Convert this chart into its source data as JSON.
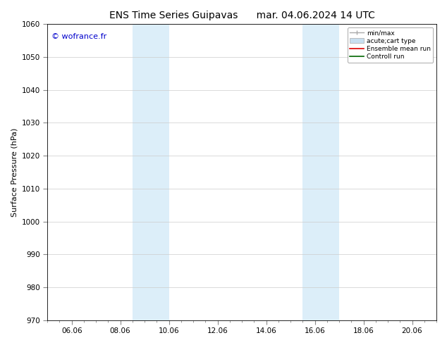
{
  "title_left": "ENS Time Series Guipavas",
  "title_right": "mar. 04.06.2024 14 UTC",
  "ylabel": "Surface Pressure (hPa)",
  "ylim": [
    970,
    1060
  ],
  "yticks": [
    970,
    980,
    990,
    1000,
    1010,
    1020,
    1030,
    1040,
    1050,
    1060
  ],
  "xtick_labels": [
    "06.06",
    "08.06",
    "10.06",
    "12.06",
    "14.06",
    "16.06",
    "18.06",
    "20.06"
  ],
  "xtick_positions": [
    2,
    4,
    6,
    8,
    10,
    12,
    14,
    16
  ],
  "xlim": [
    1,
    17
  ],
  "watermark": "© wofrance.fr",
  "watermark_color": "#0000cc",
  "shaded_bands": [
    {
      "x_start": 4.5,
      "x_end": 6.0,
      "color": "#dceef9"
    },
    {
      "x_start": 11.5,
      "x_end": 13.0,
      "color": "#dceef9"
    }
  ],
  "legend_entries": [
    {
      "label": "min/max",
      "color": "#aaaaaa",
      "lw": 1.0
    },
    {
      "label": "acute;cart type",
      "color": "#c8dff0",
      "lw": 8
    },
    {
      "label": "Ensemble mean run",
      "color": "#dd0000",
      "lw": 1.2
    },
    {
      "label": "Controll run",
      "color": "#006600",
      "lw": 1.2
    }
  ],
  "background_color": "#ffffff",
  "spine_color": "#000000",
  "title_fontsize": 10,
  "label_fontsize": 8,
  "tick_fontsize": 7.5
}
